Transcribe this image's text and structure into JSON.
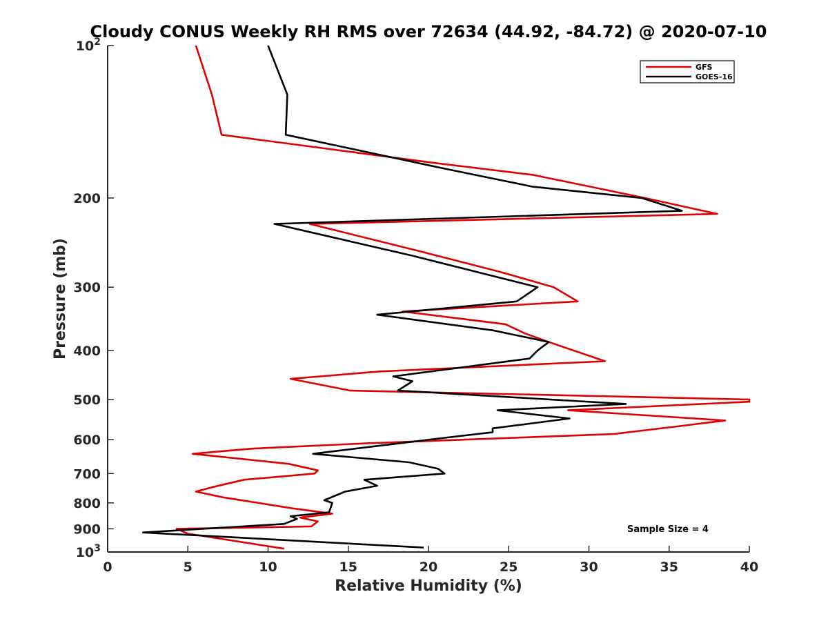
{
  "chart_data": {
    "type": "line",
    "title": "Cloudy CONUS Weekly RH RMS over 72634 (44.92, -84.72) @ 2020-07-10",
    "xlabel": "Relative Humidity (%)",
    "ylabel": "Pressure (mb)",
    "xlim": [
      0,
      40
    ],
    "ylim": [
      100,
      1000
    ],
    "y_scale": "log",
    "y_reversed": true,
    "x_ticks": [
      "0",
      "5",
      "10",
      "15",
      "20",
      "25",
      "30",
      "35",
      "40"
    ],
    "y_ticks": [
      {
        "value": 100,
        "base": "10",
        "exp": "2"
      },
      {
        "value": 200,
        "label": "200"
      },
      {
        "value": 300,
        "label": "300"
      },
      {
        "value": 400,
        "label": "400"
      },
      {
        "value": 500,
        "label": "500"
      },
      {
        "value": 600,
        "label": "600"
      },
      {
        "value": 700,
        "label": "700"
      },
      {
        "value": 800,
        "label": "800"
      },
      {
        "value": 900,
        "label": "900"
      },
      {
        "value": 1000,
        "base": "10",
        "exp": "3"
      }
    ],
    "grid": false,
    "legend_position": "top-right",
    "series": [
      {
        "name": "GFS",
        "color": "#e00000",
        "points": [
          [
            5.5,
            100
          ],
          [
            6.5,
            125
          ],
          [
            7.1,
            150
          ],
          [
            20.0,
            170
          ],
          [
            26.5,
            180
          ],
          [
            33.5,
            200
          ],
          [
            38.0,
            215
          ],
          [
            12.6,
            225
          ],
          [
            19.5,
            255
          ],
          [
            24.5,
            280
          ],
          [
            27.8,
            300
          ],
          [
            29.3,
            320
          ],
          [
            18.4,
            335
          ],
          [
            24.8,
            355
          ],
          [
            26.0,
            370
          ],
          [
            27.5,
            385
          ],
          [
            31.0,
            420
          ],
          [
            17.0,
            440
          ],
          [
            11.4,
            455
          ],
          [
            15.1,
            480
          ],
          [
            40.0,
            500
          ],
          [
            40.0,
            505
          ],
          [
            28.7,
            525
          ],
          [
            38.5,
            550
          ],
          [
            35.5,
            565
          ],
          [
            31.5,
            585
          ],
          [
            16.2,
            610
          ],
          [
            9.0,
            625
          ],
          [
            5.3,
            640
          ],
          [
            11.3,
            670
          ],
          [
            13.1,
            690
          ],
          [
            12.9,
            700
          ],
          [
            8.5,
            720
          ],
          [
            6.5,
            745
          ],
          [
            5.5,
            760
          ],
          [
            7.2,
            780
          ],
          [
            11.5,
            820
          ],
          [
            14.0,
            840
          ],
          [
            12.0,
            855
          ],
          [
            13.1,
            870
          ],
          [
            12.7,
            890
          ],
          [
            4.3,
            900
          ],
          [
            5.0,
            920
          ],
          [
            11.0,
            985
          ]
        ]
      },
      {
        "name": "GOES-16",
        "color": "#000000",
        "points": [
          [
            10.0,
            100
          ],
          [
            11.2,
            125
          ],
          [
            11.1,
            150
          ],
          [
            21.0,
            175
          ],
          [
            26.5,
            190
          ],
          [
            33.3,
            200
          ],
          [
            35.8,
            212
          ],
          [
            10.4,
            225
          ],
          [
            19.0,
            260
          ],
          [
            24.0,
            285
          ],
          [
            26.8,
            300
          ],
          [
            25.5,
            320
          ],
          [
            16.8,
            340
          ],
          [
            24.0,
            365
          ],
          [
            27.5,
            385
          ],
          [
            26.8,
            400
          ],
          [
            26.3,
            415
          ],
          [
            17.8,
            450
          ],
          [
            19.0,
            460
          ],
          [
            18.1,
            480
          ],
          [
            32.3,
            510
          ],
          [
            24.3,
            525
          ],
          [
            28.8,
            545
          ],
          [
            24.0,
            570
          ],
          [
            24.0,
            580
          ],
          [
            21.0,
            595
          ],
          [
            12.8,
            640
          ],
          [
            18.8,
            665
          ],
          [
            20.6,
            685
          ],
          [
            21.0,
            700
          ],
          [
            16.0,
            720
          ],
          [
            16.8,
            740
          ],
          [
            14.8,
            760
          ],
          [
            13.5,
            790
          ],
          [
            14.0,
            800
          ],
          [
            13.8,
            835
          ],
          [
            11.4,
            850
          ],
          [
            11.8,
            860
          ],
          [
            11.0,
            880
          ],
          [
            2.2,
            915
          ],
          [
            19.7,
            980
          ]
        ]
      }
    ],
    "annotations": [
      "Sample Size = 4"
    ]
  }
}
